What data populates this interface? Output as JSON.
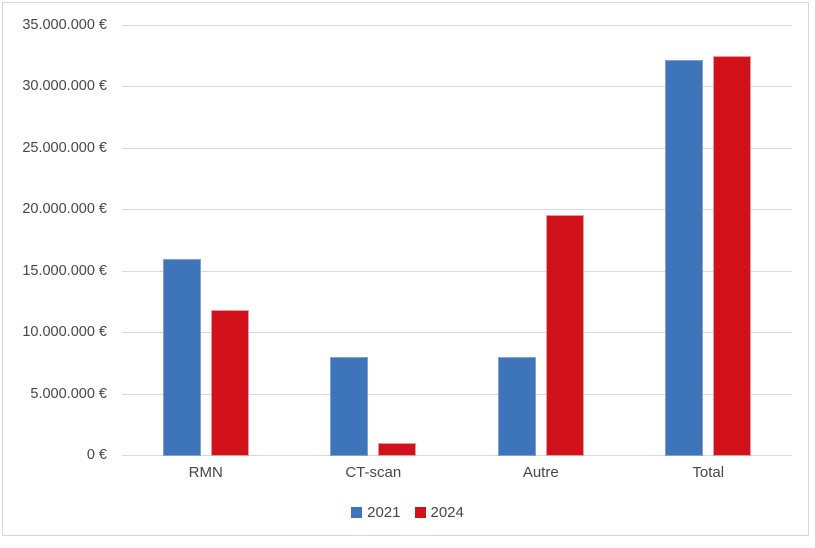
{
  "chart_data": {
    "type": "bar",
    "title": "",
    "categories": [
      "RMN",
      "CT-scan",
      "Autre",
      "Total"
    ],
    "series": [
      {
        "name": "2021",
        "color": "#3e74ba",
        "edge_color": "#7fa2ce",
        "values": [
          16000000,
          8100000,
          8100000,
          32200000
        ]
      },
      {
        "name": "2024",
        "color": "#d2121a",
        "edge_color": "#e8999d",
        "values": [
          11900000,
          1100000,
          19600000,
          32600000
        ]
      }
    ],
    "ylabel": "",
    "xlabel": "",
    "ylim": [
      0,
      35000000
    ],
    "ytick_step": 5000000,
    "ytick_labels": [
      "0 €",
      "5.000.000 €",
      "10.000.000 €",
      "15.000.000 €",
      "20.000.000 €",
      "25.000.000 €",
      "30.000.000 €",
      "35.000.000 €"
    ],
    "grid": true,
    "legend_position": "bottom"
  },
  "style": {
    "text_color": "#474747",
    "grid_color": "#d9d9d9",
    "frame_border_color": "#d5d5d5",
    "background": "#ffffff"
  }
}
